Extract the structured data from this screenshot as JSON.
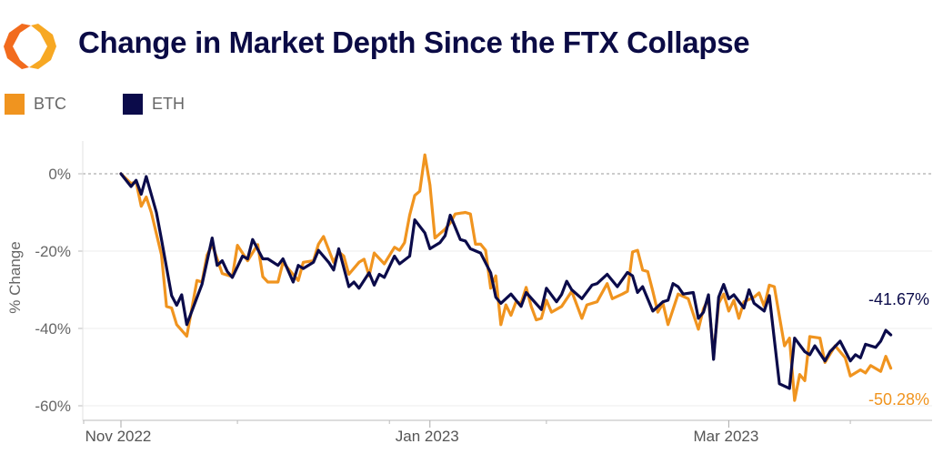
{
  "title": "Change in Market Depth Since the FTX Collapse",
  "logo": {
    "icon": "hexagon-brackets-logo",
    "colors": [
      "#F7A823",
      "#F26B1D"
    ]
  },
  "legend": [
    {
      "label": "BTC",
      "color": "#F0941F"
    },
    {
      "label": "ETH",
      "color": "#0B0B4A"
    }
  ],
  "chart_data": {
    "type": "line",
    "title": "Change in Market Depth Since the FTX Collapse",
    "xlabel": "",
    "ylabel": "% Change",
    "ylim": [
      -62,
      8
    ],
    "yticks": [
      0,
      -20,
      -40,
      -60
    ],
    "ytick_labels": [
      "0%",
      "-20%",
      "-40%",
      "-60%"
    ],
    "xlim": [
      "2022-10-24",
      "2023-04-10"
    ],
    "xticks": [
      "2022-11-01",
      "2023-01-01",
      "2023-03-01"
    ],
    "xtick_labels": [
      "Nov 2022",
      "Jan 2023",
      "Mar 2023"
    ],
    "minor_xticks": [
      "2022-11-24",
      "2022-12-24",
      "2023-01-24",
      "2023-03-25"
    ],
    "grid": true,
    "reference_line": {
      "y": 0,
      "style": "dashed"
    },
    "legend_position": "top-left",
    "end_labels": [
      {
        "series": "ETH",
        "text": "-41.67%"
      },
      {
        "series": "BTC",
        "text": "-50.28%"
      }
    ],
    "series": [
      {
        "name": "BTC",
        "color": "#F0941F",
        "points": [
          [
            "2022-11-01",
            0
          ],
          [
            "2022-11-03",
            -2.5
          ],
          [
            "2022-11-04",
            -2.1
          ],
          [
            "2022-11-05",
            -8.4
          ],
          [
            "2022-11-06",
            -6
          ],
          [
            "2022-11-07",
            -10
          ],
          [
            "2022-11-09",
            -21
          ],
          [
            "2022-11-10",
            -34.3
          ],
          [
            "2022-11-11",
            -34.7
          ],
          [
            "2022-11-12",
            -39
          ],
          [
            "2022-11-14",
            -42
          ],
          [
            "2022-11-16",
            -27.6
          ],
          [
            "2022-11-17",
            -28
          ],
          [
            "2022-11-18",
            -21
          ],
          [
            "2022-11-19",
            -18.3
          ],
          [
            "2022-11-21",
            -25.8
          ],
          [
            "2022-11-23",
            -26.6
          ],
          [
            "2022-11-24",
            -18.5
          ],
          [
            "2022-11-26",
            -22.5
          ],
          [
            "2022-11-28",
            -18.3
          ],
          [
            "2022-11-29",
            -26.6
          ],
          [
            "2022-11-30",
            -28
          ],
          [
            "2022-12-02",
            -28
          ],
          [
            "2022-12-03",
            -22.9
          ],
          [
            "2022-12-04",
            -24.5
          ],
          [
            "2022-12-06",
            -27.6
          ],
          [
            "2022-12-07",
            -22.9
          ],
          [
            "2022-12-09",
            -22.5
          ],
          [
            "2022-12-10",
            -18.2
          ],
          [
            "2022-12-11",
            -16.2
          ],
          [
            "2022-12-13",
            -22.9
          ],
          [
            "2022-12-14",
            -20.2
          ],
          [
            "2022-12-15",
            -21.3
          ],
          [
            "2022-12-16",
            -26
          ],
          [
            "2022-12-18",
            -22.9
          ],
          [
            "2022-12-19",
            -22.1
          ],
          [
            "2022-12-20",
            -26.4
          ],
          [
            "2022-12-21",
            -20.5
          ],
          [
            "2022-12-23",
            -23.3
          ],
          [
            "2022-12-25",
            -19
          ],
          [
            "2022-12-26",
            -19.8
          ],
          [
            "2022-12-27",
            -17.8
          ],
          [
            "2022-12-28",
            -10.7
          ],
          [
            "2022-12-29",
            -5.6
          ],
          [
            "2022-12-30",
            -4.5
          ],
          [
            "2022-12-31",
            4.9
          ],
          [
            "2023-01-01",
            -2.9
          ],
          [
            "2023-01-02",
            -16.6
          ],
          [
            "2023-01-04",
            -14.3
          ],
          [
            "2023-01-05",
            -12.7
          ],
          [
            "2023-01-06",
            -10.4
          ],
          [
            "2023-01-08",
            -10
          ],
          [
            "2023-01-09",
            -10.4
          ],
          [
            "2023-01-10",
            -18.2
          ],
          [
            "2023-01-11",
            -18.2
          ],
          [
            "2023-01-12",
            -19.8
          ],
          [
            "2023-01-13",
            -29.6
          ],
          [
            "2023-01-14",
            -26.4
          ],
          [
            "2023-01-15",
            -39
          ],
          [
            "2023-01-16",
            -33.9
          ],
          [
            "2023-01-17",
            -36.6
          ],
          [
            "2023-01-18",
            -33.1
          ],
          [
            "2023-01-19",
            -33.5
          ],
          [
            "2023-01-20",
            -29.4
          ],
          [
            "2023-01-21",
            -34.3
          ],
          [
            "2023-01-22",
            -37.8
          ],
          [
            "2023-01-23",
            -37.4
          ],
          [
            "2023-01-24",
            -32.7
          ],
          [
            "2023-01-25",
            -35.8
          ],
          [
            "2023-01-27",
            -34.3
          ],
          [
            "2023-01-29",
            -30.4
          ],
          [
            "2023-01-31",
            -37.4
          ],
          [
            "2023-02-01",
            -33.9
          ],
          [
            "2023-02-03",
            -33.1
          ],
          [
            "2023-02-05",
            -28.4
          ],
          [
            "2023-02-06",
            -32.3
          ],
          [
            "2023-02-08",
            -31.1
          ],
          [
            "2023-02-09",
            -30.4
          ],
          [
            "2023-02-10",
            -20.2
          ],
          [
            "2023-02-11",
            -19.8
          ],
          [
            "2023-02-12",
            -24.9
          ],
          [
            "2023-02-13",
            -25.3
          ],
          [
            "2023-02-14",
            -30.4
          ],
          [
            "2023-02-15",
            -35.8
          ],
          [
            "2023-02-16",
            -33.5
          ],
          [
            "2023-02-17",
            -39
          ],
          [
            "2023-02-19",
            -31.1
          ],
          [
            "2023-02-21",
            -32.3
          ],
          [
            "2023-02-23",
            -40.2
          ],
          [
            "2023-02-24",
            -34.9
          ],
          [
            "2023-02-25",
            -32.3
          ],
          [
            "2023-02-26",
            -46.8
          ],
          [
            "2023-02-27",
            -33.5
          ],
          [
            "2023-02-28",
            -31.1
          ],
          [
            "2023-03-01",
            -35.5
          ],
          [
            "2023-03-02",
            -32.7
          ],
          [
            "2023-03-03",
            -37.4
          ],
          [
            "2023-03-04",
            -33.1
          ],
          [
            "2023-03-06",
            -31.9
          ],
          [
            "2023-03-07",
            -30.8
          ],
          [
            "2023-03-08",
            -34.3
          ],
          [
            "2023-03-09",
            -28.8
          ],
          [
            "2023-03-10",
            -29.2
          ],
          [
            "2023-03-12",
            -44.5
          ],
          [
            "2023-03-13",
            -42.5
          ],
          [
            "2023-03-14",
            -58.6
          ],
          [
            "2023-03-15",
            -51.9
          ],
          [
            "2023-03-16",
            -53.5
          ],
          [
            "2023-03-17",
            -42.1
          ],
          [
            "2023-03-19",
            -42.5
          ],
          [
            "2023-03-20",
            -48.8
          ],
          [
            "2023-03-22",
            -44.5
          ],
          [
            "2023-03-24",
            -47.6
          ],
          [
            "2023-03-25",
            -52.3
          ],
          [
            "2023-03-27",
            -50.7
          ],
          [
            "2023-03-28",
            -51.5
          ],
          [
            "2023-03-29",
            -49.6
          ],
          [
            "2023-03-31",
            -51.1
          ],
          [
            "2023-04-01",
            -47.2
          ],
          [
            "2023-04-02",
            -50.28
          ]
        ]
      },
      {
        "name": "ETH",
        "color": "#0B0B4A",
        "points": [
          [
            "2022-11-01",
            0
          ],
          [
            "2022-11-03",
            -3.3
          ],
          [
            "2022-11-04",
            -1.7
          ],
          [
            "2022-11-05",
            -5.3
          ],
          [
            "2022-11-06",
            -0.7
          ],
          [
            "2022-11-08",
            -10
          ],
          [
            "2022-11-09",
            -17
          ],
          [
            "2022-11-11",
            -31.5
          ],
          [
            "2022-11-12",
            -34
          ],
          [
            "2022-11-13",
            -31.3
          ],
          [
            "2022-11-14",
            -39
          ],
          [
            "2022-11-16",
            -32
          ],
          [
            "2022-11-17",
            -28.6
          ],
          [
            "2022-11-19",
            -16.6
          ],
          [
            "2022-11-20",
            -23.7
          ],
          [
            "2022-11-21",
            -22.5
          ],
          [
            "2022-11-22",
            -25.3
          ],
          [
            "2022-11-23",
            -26.8
          ],
          [
            "2022-11-25",
            -21.3
          ],
          [
            "2022-11-26",
            -22
          ],
          [
            "2022-11-27",
            -17
          ],
          [
            "2022-11-29",
            -22
          ],
          [
            "2022-11-30",
            -22
          ],
          [
            "2022-12-02",
            -23.7
          ],
          [
            "2022-12-03",
            -22
          ],
          [
            "2022-12-05",
            -28
          ],
          [
            "2022-12-06",
            -23.7
          ],
          [
            "2022-12-07",
            -24.5
          ],
          [
            "2022-12-09",
            -22.9
          ],
          [
            "2022-12-10",
            -19.8
          ],
          [
            "2022-12-12",
            -22.9
          ],
          [
            "2022-12-13",
            -24.9
          ],
          [
            "2022-12-14",
            -19.4
          ],
          [
            "2022-12-16",
            -29.2
          ],
          [
            "2022-12-17",
            -28
          ],
          [
            "2022-12-18",
            -29.6
          ],
          [
            "2022-12-20",
            -25.6
          ],
          [
            "2022-12-21",
            -28.8
          ],
          [
            "2022-12-22",
            -26
          ],
          [
            "2022-12-23",
            -26.8
          ],
          [
            "2022-12-25",
            -21.3
          ],
          [
            "2022-12-26",
            -23.3
          ],
          [
            "2022-12-28",
            -21.3
          ],
          [
            "2022-12-29",
            -11.9
          ],
          [
            "2022-12-31",
            -15.3
          ],
          [
            "2023-01-01",
            -19.4
          ],
          [
            "2023-01-03",
            -17.8
          ],
          [
            "2023-01-04",
            -16
          ],
          [
            "2023-01-05",
            -10.7
          ],
          [
            "2023-01-07",
            -17
          ],
          [
            "2023-01-08",
            -17.4
          ],
          [
            "2023-01-09",
            -19.4
          ],
          [
            "2023-01-11",
            -20.5
          ],
          [
            "2023-01-13",
            -25.6
          ],
          [
            "2023-01-14",
            -31.9
          ],
          [
            "2023-01-15",
            -33.5
          ],
          [
            "2023-01-17",
            -31.1
          ],
          [
            "2023-01-18",
            -32.7
          ],
          [
            "2023-01-19",
            -34.3
          ],
          [
            "2023-01-20",
            -30.7
          ],
          [
            "2023-01-23",
            -35.1
          ],
          [
            "2023-01-24",
            -29.6
          ],
          [
            "2023-01-26",
            -33.1
          ],
          [
            "2023-01-27",
            -31.2
          ],
          [
            "2023-01-28",
            -27.8
          ],
          [
            "2023-01-29",
            -30
          ],
          [
            "2023-01-31",
            -32.3
          ],
          [
            "2023-02-02",
            -28.8
          ],
          [
            "2023-02-03",
            -28.4
          ],
          [
            "2023-02-05",
            -26
          ],
          [
            "2023-02-07",
            -29.2
          ],
          [
            "2023-02-09",
            -25.5
          ],
          [
            "2023-02-10",
            -26.4
          ],
          [
            "2023-02-11",
            -30.7
          ],
          [
            "2023-02-12",
            -29.2
          ],
          [
            "2023-02-14",
            -35.5
          ],
          [
            "2023-02-16",
            -33.1
          ],
          [
            "2023-02-17",
            -32.7
          ],
          [
            "2023-02-18",
            -28.4
          ],
          [
            "2023-02-19",
            -29.2
          ],
          [
            "2023-02-20",
            -31.1
          ],
          [
            "2023-02-22",
            -30.7
          ],
          [
            "2023-02-23",
            -37.4
          ],
          [
            "2023-02-24",
            -35.8
          ],
          [
            "2023-02-25",
            -31.3
          ],
          [
            "2023-02-26",
            -48
          ],
          [
            "2023-02-27",
            -31.9
          ],
          [
            "2023-02-28",
            -28.6
          ],
          [
            "2023-03-01",
            -32.3
          ],
          [
            "2023-03-02",
            -31.3
          ],
          [
            "2023-03-04",
            -34.7
          ],
          [
            "2023-03-05",
            -30
          ],
          [
            "2023-03-06",
            -33.5
          ],
          [
            "2023-03-08",
            -35.5
          ],
          [
            "2023-03-09",
            -31.5
          ],
          [
            "2023-03-11",
            -54.3
          ],
          [
            "2023-03-13",
            -55.5
          ],
          [
            "2023-03-14",
            -42.5
          ],
          [
            "2023-03-16",
            -46
          ],
          [
            "2023-03-17",
            -46.8
          ],
          [
            "2023-03-18",
            -44.5
          ],
          [
            "2023-03-20",
            -48.4
          ],
          [
            "2023-03-21",
            -46
          ],
          [
            "2023-03-23",
            -43.3
          ],
          [
            "2023-03-25",
            -48.4
          ],
          [
            "2023-03-26",
            -46.8
          ],
          [
            "2023-03-27",
            -47.6
          ],
          [
            "2023-03-28",
            -44.1
          ],
          [
            "2023-03-30",
            -44.9
          ],
          [
            "2023-03-31",
            -43.3
          ],
          [
            "2023-04-01",
            -40.5
          ],
          [
            "2023-04-02",
            -41.67
          ]
        ]
      }
    ]
  }
}
